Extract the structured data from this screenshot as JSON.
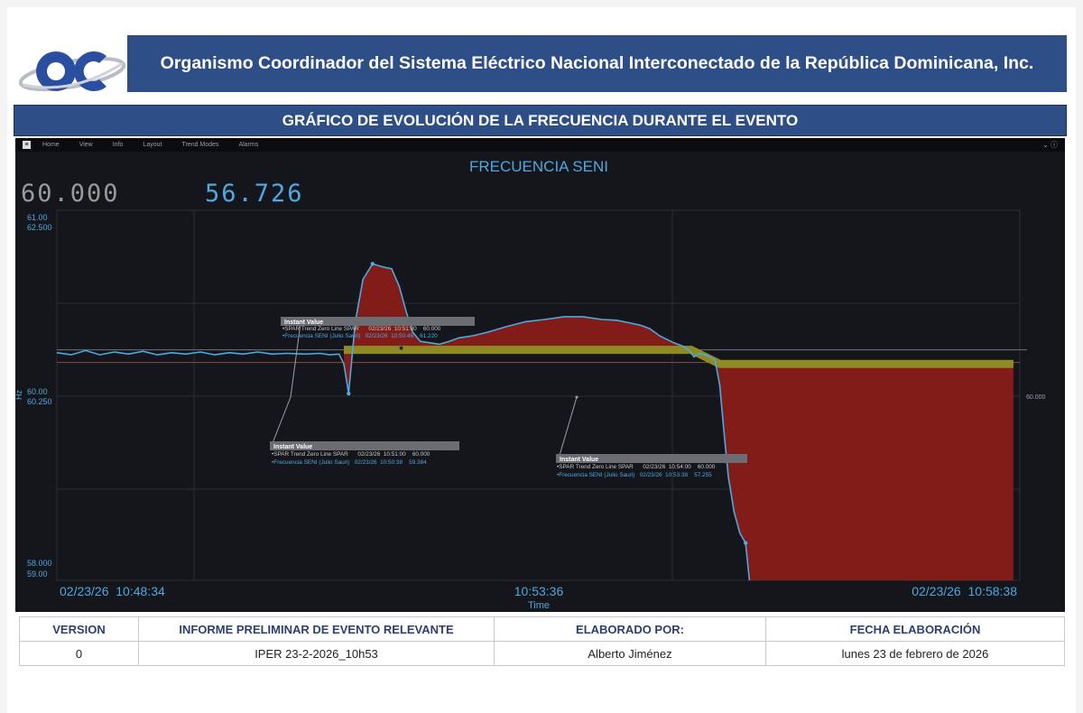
{
  "header": {
    "organization": "Organismo Coordinador del Sistema Eléctrico Nacional Interconectado de la República Dominicana, Inc.",
    "logo_text": "OC",
    "chart_title": "GRÁFICO DE EVOLUCIÓN DE LA FRECUENCIA DURANTE EL EVENTO"
  },
  "trend_app": {
    "menu": [
      "Home",
      "View",
      "Info",
      "Layout",
      "Trend Modes",
      "Alarms"
    ],
    "menu_square": "≡",
    "menu_right": "⌄   ⓘ"
  },
  "chart_data": {
    "type": "line",
    "title": "FRECUENCIA SENI",
    "xlabel": "Time",
    "ylabel": "Hz",
    "readout_reference": "60.000",
    "readout_current": "56.726",
    "reference_marker": "60.000",
    "x_ticks": [
      "02/23/26  10:48:34",
      "10:53:36",
      "02/23/26  10:58:38"
    ],
    "x_range_minutes": [
      0,
      10.067
    ],
    "y_range_hz": [
      56.73,
      61.98
    ],
    "y_labels_left_top": [
      "61.00",
      "62.500"
    ],
    "y_labels_left_mid": [
      "60.00",
      "60.250"
    ],
    "y_labels_left_bottom": [
      "58.000",
      "59.00"
    ],
    "reference_value": 60.0,
    "series": [
      {
        "name": "Frecuencia SENI (Julio Sauri)",
        "color": "#4fa8e0",
        "fill_color": "#8c1d18",
        "points": [
          [
            0,
            59.96
          ],
          [
            0.15,
            59.93
          ],
          [
            0.3,
            59.99
          ],
          [
            0.45,
            59.93
          ],
          [
            0.6,
            59.97
          ],
          [
            0.75,
            59.94
          ],
          [
            0.9,
            59.98
          ],
          [
            1.05,
            59.93
          ],
          [
            1.2,
            59.96
          ],
          [
            1.35,
            59.94
          ],
          [
            1.5,
            59.97
          ],
          [
            1.65,
            59.93
          ],
          [
            1.8,
            59.96
          ],
          [
            1.95,
            59.94
          ],
          [
            2.1,
            59.97
          ],
          [
            2.25,
            59.94
          ],
          [
            2.4,
            59.95
          ],
          [
            2.6,
            59.94
          ],
          [
            2.75,
            59.95
          ],
          [
            2.85,
            59.93
          ],
          [
            2.95,
            59.94
          ],
          [
            3.0,
            59.8
          ],
          [
            3.05,
            59.38
          ],
          [
            3.12,
            60.4
          ],
          [
            3.2,
            61.0
          ],
          [
            3.3,
            61.22
          ],
          [
            3.4,
            61.18
          ],
          [
            3.5,
            61.15
          ],
          [
            3.58,
            60.9
          ],
          [
            3.65,
            60.55
          ],
          [
            3.72,
            60.25
          ],
          [
            3.8,
            60.12
          ],
          [
            3.9,
            60.1
          ],
          [
            4.0,
            60.08
          ],
          [
            4.1,
            60.12
          ],
          [
            4.2,
            60.17
          ],
          [
            4.35,
            60.2
          ],
          [
            4.5,
            60.25
          ],
          [
            4.7,
            60.33
          ],
          [
            4.9,
            60.4
          ],
          [
            5.1,
            60.43
          ],
          [
            5.3,
            60.47
          ],
          [
            5.5,
            60.47
          ],
          [
            5.7,
            60.43
          ],
          [
            5.85,
            60.42
          ],
          [
            6.0,
            60.38
          ],
          [
            6.1,
            60.35
          ],
          [
            6.2,
            60.3
          ],
          [
            6.3,
            60.2
          ],
          [
            6.45,
            60.1
          ],
          [
            6.55,
            60.05
          ],
          [
            6.62,
            59.98
          ],
          [
            6.66,
            59.9
          ],
          [
            6.72,
            59.95
          ],
          [
            6.8,
            59.92
          ],
          [
            6.88,
            59.86
          ],
          [
            6.93,
            59.5
          ],
          [
            6.97,
            58.9
          ],
          [
            7.02,
            58.2
          ],
          [
            7.08,
            57.7
          ],
          [
            7.14,
            57.4
          ],
          [
            7.2,
            57.26
          ],
          [
            7.24,
            56.73
          ]
        ]
      },
      {
        "name": "SPAR Trend Zero Line SPAR",
        "color": "#8e8a24",
        "points": [
          [
            3.0,
            60.0
          ],
          [
            6.63,
            60.0
          ],
          [
            6.93,
            59.8
          ],
          [
            10.0,
            59.8
          ]
        ]
      }
    ],
    "tooltips": [
      {
        "title": "Instant Value",
        "line1": "•SPAR Trend Zero Line SPAR      02/23/26  10:51:00    60.000",
        "line2": "•Frecuencia SENI (Julio Sauri)   02/23/26  10:50:46    61.220"
      },
      {
        "title": "Instant Value",
        "line1": "•SPAR Trend Zero Line SPAR      02/23/26  10:51:00    60.000",
        "line2": "•Frecuencia SENI (Julio Sauri)   02/23/26  10:50:38    59.384"
      },
      {
        "title": "Instant Value",
        "line1": "•SPAR Trend Zero Line SPAR      02/23/26  10:54:00    60.000",
        "line2": "•Frecuencia SENI (Julio Sauri)   02/23/26  10:53:38    57.255"
      }
    ]
  },
  "footer": {
    "headers": [
      "VERSION",
      "INFORME PRELIMINAR DE EVENTO RELEVANTE",
      "ELABORADO POR:",
      "FECHA ELABORACIÓN"
    ],
    "values": [
      "0",
      "IPER 23-2-2026_10h53",
      "Alberto Jiménez",
      "lunes 23 de febrero de 2026"
    ]
  },
  "colors": {
    "brand_blue": "#2d4e87",
    "panel_bg": "#14161b",
    "accent_blue": "#4fa8e0",
    "fill_red": "#8c1d18",
    "band_olive": "#8e8a24",
    "readout_gray": "#9a9a9a"
  }
}
